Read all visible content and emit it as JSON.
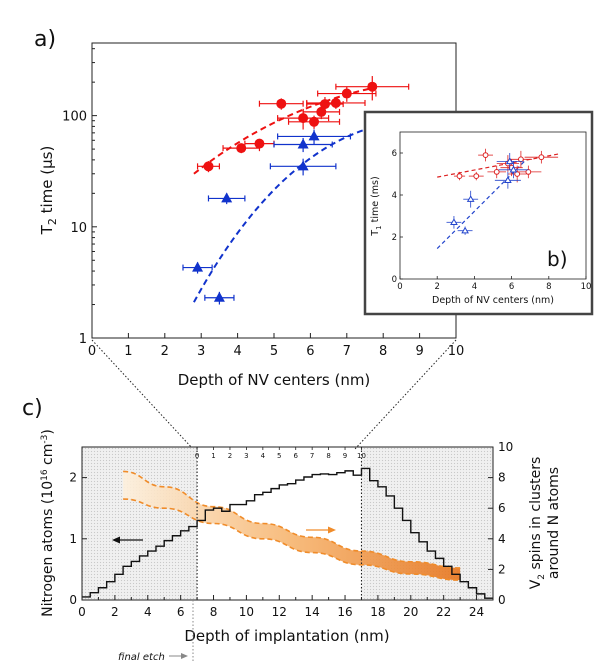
{
  "chart_data": [
    {
      "id": "a",
      "panel_label": "a)",
      "type": "scatter",
      "xlabel": "Depth of NV centers (nm)",
      "ylabel_main": "T",
      "ylabel_sub": "2",
      "ylabel_rest": " time (μs)",
      "xlim": [
        0,
        10
      ],
      "ylim": [
        1,
        450
      ],
      "yscale": "log",
      "x_ticks": [
        "0",
        "1",
        "2",
        "3",
        "4",
        "5",
        "6",
        "7",
        "8",
        "9",
        "10"
      ],
      "y_ticks": [
        {
          "v": 1,
          "label": "1"
        },
        {
          "v": 10,
          "label": "10"
        },
        {
          "v": 100,
          "label": "100"
        }
      ],
      "series": [
        {
          "name": "red",
          "marker": "circle",
          "color": "#ee1111",
          "points": [
            {
              "x": 3.2,
              "y": 35,
              "xerr": 0.3,
              "yerr": 4
            },
            {
              "x": 4.1,
              "y": 51,
              "xerr": 0.5,
              "yerr": 5
            },
            {
              "x": 4.6,
              "y": 56,
              "xerr": 0.4,
              "yerr": 5
            },
            {
              "x": 5.2,
              "y": 128,
              "xerr": 0.6,
              "yerr": 15
            },
            {
              "x": 5.8,
              "y": 95,
              "xerr": 0.7,
              "yerr": 20
            },
            {
              "x": 6.1,
              "y": 88,
              "xerr": 0.7,
              "yerr": 12
            },
            {
              "x": 6.3,
              "y": 108,
              "xerr": 0.5,
              "yerr": 15
            },
            {
              "x": 6.4,
              "y": 127,
              "xerr": 0.5,
              "yerr": 20
            },
            {
              "x": 6.7,
              "y": 130,
              "xerr": 0.8,
              "yerr": 15
            },
            {
              "x": 7.0,
              "y": 158,
              "xerr": 0.8,
              "yerr": 25
            },
            {
              "x": 7.7,
              "y": 182,
              "xerr": 1.0,
              "yerr": 45
            }
          ],
          "fit": {
            "x0": 2.8,
            "x1": 7.8,
            "y0": 30,
            "y1": 180
          }
        },
        {
          "name": "blue",
          "marker": "triangle",
          "color": "#1133cc",
          "points": [
            {
              "x": 2.9,
              "y": 4.3,
              "xerr": 0.4,
              "yerr": 0.5
            },
            {
              "x": 3.5,
              "y": 2.3,
              "xerr": 0.4,
              "yerr": 0.3
            },
            {
              "x": 3.7,
              "y": 18,
              "xerr": 0.5,
              "yerr": 2
            },
            {
              "x": 5.8,
              "y": 35,
              "xerr": 0.9,
              "yerr": 6
            },
            {
              "x": 5.8,
              "y": 55,
              "xerr": 0.8,
              "yerr": 8
            },
            {
              "x": 6.1,
              "y": 65,
              "xerr": 1.0,
              "yerr": 10
            }
          ],
          "fit": {
            "x0": 2.8,
            "x1": 7.8,
            "y0": 2.1,
            "y1": 80
          }
        }
      ]
    },
    {
      "id": "b",
      "panel_label": "b)",
      "type": "scatter",
      "xlabel": "Depth of NV centers (nm)",
      "ylabel_main": "T",
      "ylabel_sub": "1",
      "ylabel_rest": " time (ms)",
      "xlim": [
        0,
        10
      ],
      "ylim": [
        0,
        7
      ],
      "x_ticks": [
        "0",
        "2",
        "4",
        "6",
        "8",
        "10"
      ],
      "y_ticks": [
        "0",
        "2",
        "4",
        "6"
      ],
      "series": [
        {
          "name": "red",
          "marker": "circle",
          "color": "#dd2222",
          "points": [
            {
              "x": 3.2,
              "y": 4.9,
              "xerr": 0.3,
              "yerr": 0.2
            },
            {
              "x": 4.1,
              "y": 4.9,
              "xerr": 0.4,
              "yerr": 0.2
            },
            {
              "x": 4.6,
              "y": 5.9,
              "xerr": 0.4,
              "yerr": 0.3
            },
            {
              "x": 5.2,
              "y": 5.1,
              "xerr": 0.5,
              "yerr": 0.3
            },
            {
              "x": 5.8,
              "y": 5.5,
              "xerr": 0.6,
              "yerr": 0.4
            },
            {
              "x": 6.0,
              "y": 5.3,
              "xerr": 0.6,
              "yerr": 0.4
            },
            {
              "x": 6.3,
              "y": 5.0,
              "xerr": 0.5,
              "yerr": 0.4
            },
            {
              "x": 6.5,
              "y": 5.7,
              "xerr": 0.6,
              "yerr": 0.4
            },
            {
              "x": 6.9,
              "y": 5.1,
              "xerr": 0.7,
              "yerr": 0.3
            },
            {
              "x": 7.6,
              "y": 5.8,
              "xerr": 0.9,
              "yerr": 0.3
            }
          ],
          "fit": {
            "x0": 2.0,
            "x1": 8.5,
            "y0": 4.85,
            "y1": 5.95
          }
        },
        {
          "name": "blue",
          "marker": "triangle",
          "color": "#2244cc",
          "points": [
            {
              "x": 2.9,
              "y": 2.7,
              "xerr": 0.4,
              "yerr": 0.3
            },
            {
              "x": 3.5,
              "y": 2.3,
              "xerr": 0.4,
              "yerr": 0.2
            },
            {
              "x": 3.8,
              "y": 3.8,
              "xerr": 0.4,
              "yerr": 0.4
            },
            {
              "x": 5.8,
              "y": 4.7,
              "xerr": 0.7,
              "yerr": 0.4
            },
            {
              "x": 5.9,
              "y": 5.6,
              "xerr": 0.7,
              "yerr": 0.4
            },
            {
              "x": 6.1,
              "y": 5.2,
              "xerr": 0.8,
              "yerr": 0.4
            }
          ],
          "fit": {
            "x0": 2.0,
            "x1": 6.8,
            "y0": 1.45,
            "y1": 5.7
          }
        }
      ]
    },
    {
      "id": "c",
      "panel_label": "c)",
      "type": "step+band",
      "xlabel": "Depth of implantation (nm)",
      "ylabel_left": "Nitrogen atoms (10",
      "ylabel_left_exp": "16",
      "ylabel_left_unit": " cm",
      "ylabel_left_exp2": "-3",
      "ylabel_left_close": ")",
      "ylabel_right_line1_main": "V",
      "ylabel_right_line1_sub": "2",
      "ylabel_right_line1_rest": " spins in clusters",
      "ylabel_right_line2": "around N atoms",
      "xlim": [
        0,
        25
      ],
      "ylim_left": [
        0,
        2.5
      ],
      "ylim_right": [
        0,
        10
      ],
      "x_ticks": [
        "0",
        "2",
        "4",
        "6",
        "8",
        "10",
        "12",
        "14",
        "16",
        "18",
        "20",
        "22",
        "24"
      ],
      "y_left_ticks": [
        "0",
        "1",
        "2"
      ],
      "y_right_ticks": [
        "0",
        "2",
        "4",
        "6",
        "8",
        "10"
      ],
      "inner_depth_ticks": [
        "0",
        "1",
        "2",
        "3",
        "4",
        "5",
        "6",
        "7",
        "8",
        "9",
        "10"
      ],
      "nv_window": [
        7,
        17
      ],
      "final_etch_label": "final etch",
      "step_x": [
        0,
        0.5,
        1,
        1.5,
        2,
        2.5,
        3,
        3.5,
        4,
        4.5,
        5,
        5.5,
        6,
        6.5,
        7,
        7.5,
        8,
        8.5,
        9,
        9.5,
        10,
        10.5,
        11,
        11.5,
        12,
        12.5,
        13,
        13.5,
        14,
        14.5,
        15,
        15.5,
        16,
        16.5,
        17,
        17.5,
        18,
        18.5,
        19,
        19.5,
        20,
        20.5,
        21,
        21.5,
        22,
        22.5,
        23,
        23.5,
        24,
        24.5,
        25
      ],
      "step_y": [
        0.05,
        0.12,
        0.2,
        0.3,
        0.42,
        0.55,
        0.63,
        0.72,
        0.8,
        0.88,
        0.97,
        1.05,
        1.13,
        1.2,
        1.3,
        1.47,
        1.5,
        1.45,
        1.56,
        1.56,
        1.62,
        1.72,
        1.76,
        1.82,
        1.88,
        1.9,
        1.96,
        2.01,
        2.05,
        2.06,
        2.05,
        2.08,
        2.11,
        2.04,
        2.15,
        1.95,
        1.85,
        1.7,
        1.5,
        1.3,
        1.1,
        0.95,
        0.8,
        0.68,
        0.55,
        0.42,
        0.3,
        0.2,
        0.1,
        0.03
      ],
      "band_upper": [
        {
          "x": 2.5,
          "y": 8.4
        },
        {
          "x": 5,
          "y": 7.4
        },
        {
          "x": 8,
          "y": 6.1
        },
        {
          "x": 11,
          "y": 5.0
        },
        {
          "x": 14,
          "y": 4.1
        },
        {
          "x": 17,
          "y": 3.2
        },
        {
          "x": 20,
          "y": 2.5
        },
        {
          "x": 23,
          "y": 2.1
        }
      ],
      "band_lower": [
        {
          "x": 2.5,
          "y": 6.6
        },
        {
          "x": 5,
          "y": 6.0
        },
        {
          "x": 8,
          "y": 5.0
        },
        {
          "x": 11,
          "y": 4.0
        },
        {
          "x": 14,
          "y": 3.1
        },
        {
          "x": 17,
          "y": 2.3
        },
        {
          "x": 20,
          "y": 1.7
        },
        {
          "x": 23,
          "y": 1.3
        }
      ],
      "colors": {
        "band": "#f08c2a",
        "band_light": "#fbe3c8",
        "step": "#111111",
        "shade": "#e6e6e6"
      }
    }
  ]
}
